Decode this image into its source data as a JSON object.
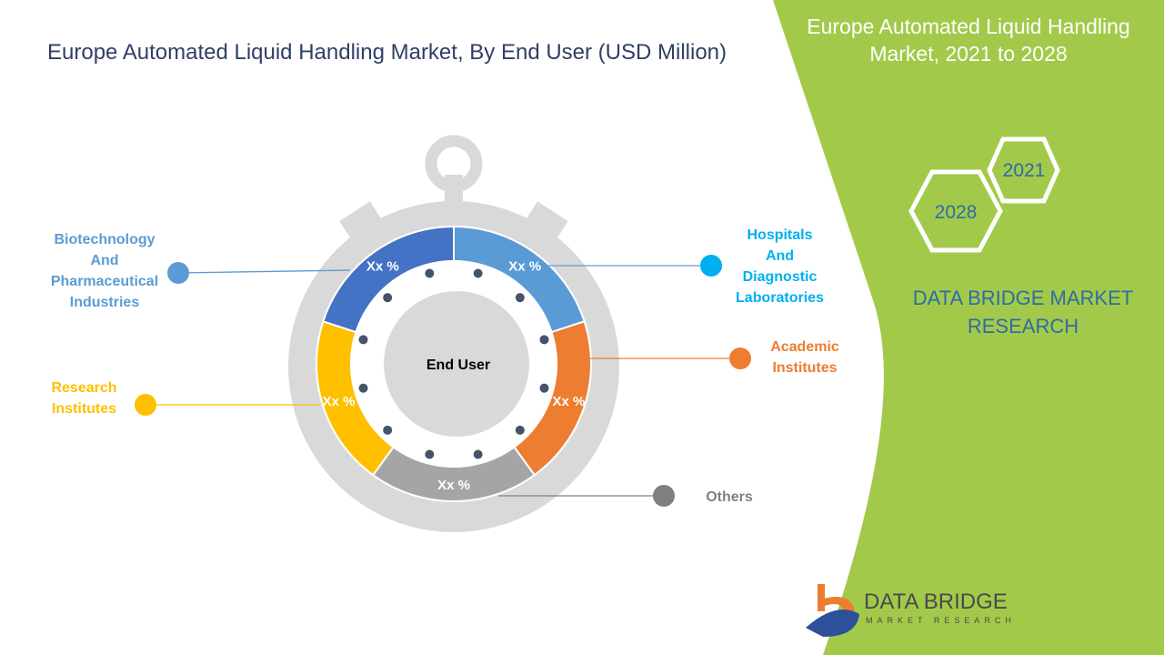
{
  "title": "Europe Automated Liquid Handling Market, By End User (USD Million)",
  "side_panel": {
    "title": "Europe Automated Liquid Handling Market, 2021 to 2028",
    "years": [
      "2021",
      "2028"
    ],
    "brand": "DATA BRIDGE MARKET RESEARCH",
    "logo_text": "DATA BRIDGE",
    "logo_subtext": "MARKET RESEARCH",
    "accent_color": "#a3c94a"
  },
  "chart_data": {
    "type": "donut",
    "title": "Europe Automated Liquid Handling Market, By End User (USD Million)",
    "center_label": "End User",
    "segments": [
      {
        "name": "Hospitals And Diagnostic Laboratories",
        "label": "Xx %",
        "color": "#5b9bd5",
        "share": 20
      },
      {
        "name": "Academic Institutes",
        "label": "Xx %",
        "color": "#ed7d31",
        "share": 20
      },
      {
        "name": "Others",
        "label": "Xx %",
        "color": "#a5a5a5",
        "share": 20
      },
      {
        "name": "Research Institutes",
        "label": "Xx %",
        "color": "#ffc000",
        "share": 20
      },
      {
        "name": "Biotechnology And Pharmaceutical Industries",
        "label": "Xx %",
        "color": "#4472c4",
        "share": 20
      }
    ],
    "legend_lines": {
      "hospitals": [
        "Hospitals",
        "And",
        "Diagnostic",
        "Laboratories"
      ],
      "academic": [
        "Academic",
        "Institutes"
      ],
      "others": [
        "Others"
      ],
      "research": [
        "Research",
        "Institutes"
      ],
      "biotech": [
        "Biotechnology",
        "And",
        "Pharmaceutical",
        "Industries"
      ]
    },
    "legend_colors": {
      "hospitals": "#00b0f0",
      "academic": "#ed7d31",
      "others": "#7f7f7f",
      "research": "#ffc000",
      "biotech": "#5b9bd5"
    }
  }
}
